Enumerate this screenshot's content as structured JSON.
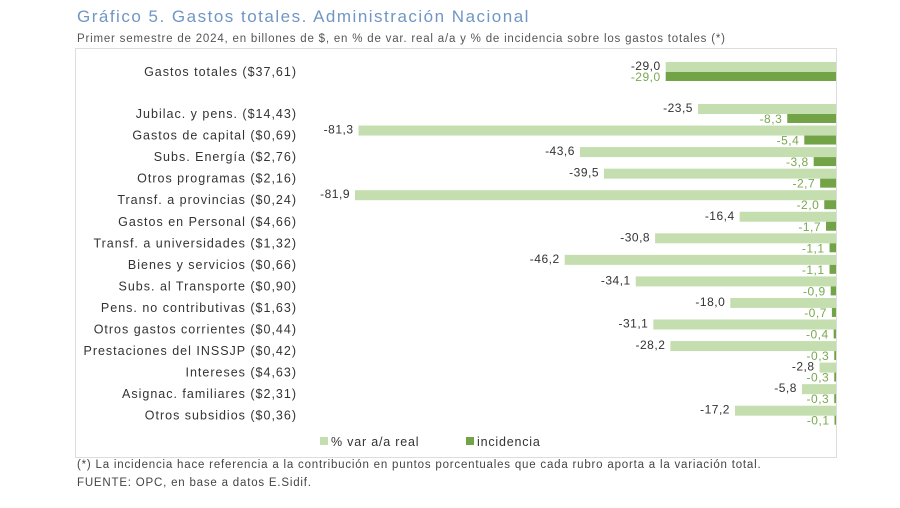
{
  "chart_data": {
    "type": "bar",
    "orientation": "horizontal",
    "title": "Gráfico 5. Gastos totales. Administración Nacional",
    "subtitle": "Primer semestre de 2024, en billones de $, en % de var. real a/a y % de incidencia sobre los gastos totales (*)",
    "categories": [
      "Gastos totales ($37,61)",
      "Jubilac. y pens. ($14,43)",
      "Gastos de capital ($0,69)",
      "Subs. Energía ($2,76)",
      "Otros programas ($2,16)",
      "Transf. a provincias ($0,24)",
      "Gastos en Personal ($4,66)",
      "Transf. a universidades ($1,32)",
      "Bienes y servicios ($0,66)",
      "Subs. al Transporte ($0,90)",
      "Pens. no contributivas ($1,63)",
      "Otros gastos corrientes ($0,44)",
      "Prestaciones del INSSJP ($0,42)",
      "Intereses ($4,63)",
      "Asignac. familiares ($2,31)",
      "Otros subsidios ($0,36)"
    ],
    "series": [
      {
        "name": "% var a/a real",
        "color": "#c5deb0",
        "values": [
          -29.0,
          -23.5,
          -81.3,
          -43.6,
          -39.5,
          -81.9,
          -16.4,
          -30.8,
          -46.2,
          -34.1,
          -18.0,
          -31.1,
          -28.2,
          -2.8,
          -5.8,
          -17.2
        ],
        "labels": [
          "-29,0",
          "-23,5",
          "-81,3",
          "-43,6",
          "-39,5",
          "-81,9",
          "-16,4",
          "-30,8",
          "-46,2",
          "-34,1",
          "-18,0",
          "-31,1",
          "-28,2",
          "-2,8",
          "-5,8",
          "-17,2"
        ]
      },
      {
        "name": "incidencia",
        "color": "#72a447",
        "values": [
          -29.0,
          -8.3,
          -5.4,
          -3.8,
          -2.7,
          -2.0,
          -1.7,
          -1.1,
          -1.1,
          -0.9,
          -0.7,
          -0.4,
          -0.3,
          -0.3,
          -0.3,
          -0.1
        ],
        "labels": [
          "-29,0",
          "-8,3",
          "-5,4",
          "-3,8",
          "-2,7",
          "-2,0",
          "-1,7",
          "-1,1",
          "-1,1",
          "-0,9",
          "-0,7",
          "-0,4",
          "-0,3",
          "-0,3",
          "-0,3",
          "-0,1"
        ]
      }
    ],
    "xlim": [
      -82,
      0
    ],
    "grid": false,
    "legend": "bottom"
  },
  "notes": {
    "footnote": "(*) La incidencia hace referencia a la contribución en puntos porcentuales que cada rubro aporta a la variación total.",
    "source": "FUENTE: OPC, en base a datos E.Sidif."
  }
}
